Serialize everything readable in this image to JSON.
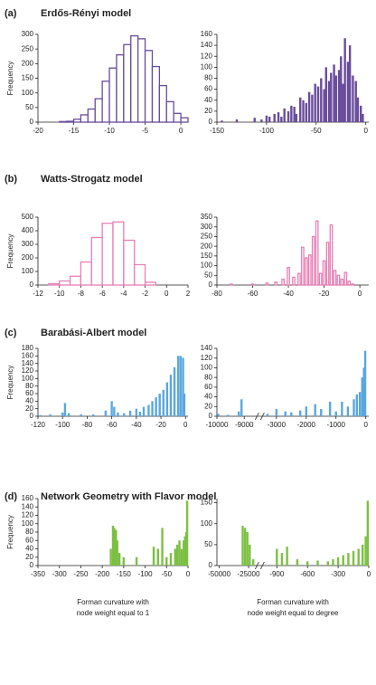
{
  "chart_data": [
    {
      "type": "histogram",
      "panel": "(a)",
      "title": "Erdős-Rényi model",
      "ylabel": "Frequency",
      "style": "outline",
      "color": "#6a4c9c",
      "bins": [
        -17,
        -16,
        -15,
        -14,
        -13,
        -12,
        -11,
        -10,
        -9,
        -8,
        -7,
        -6,
        -5,
        -4,
        -3,
        -2,
        -1,
        0,
        1
      ],
      "values": [
        2,
        3,
        10,
        25,
        45,
        80,
        140,
        185,
        230,
        265,
        295,
        285,
        245,
        190,
        125,
        70,
        30,
        15
      ],
      "xlim": [
        -20,
        1
      ],
      "xticks": [
        -20,
        -15,
        -10,
        -5,
        0
      ],
      "ylim": [
        0,
        300
      ],
      "yticks": [
        0,
        50,
        100,
        150,
        200,
        250,
        300
      ]
    },
    {
      "type": "bar",
      "style": "filled",
      "color": "#6a4c9c",
      "x": [
        -145,
        -130,
        -112,
        -105,
        -100,
        -97,
        -92,
        -88,
        -85,
        -82,
        -78,
        -75,
        -72,
        -70,
        -66,
        -63,
        -60,
        -57,
        -54,
        -51,
        -48,
        -45,
        -42,
        -40,
        -37,
        -35,
        -32,
        -30,
        -27,
        -25,
        -23,
        -21,
        -18,
        -16,
        -13,
        -10,
        -8,
        -5,
        -3
      ],
      "values": [
        3,
        5,
        8,
        5,
        12,
        10,
        15,
        18,
        10,
        25,
        20,
        30,
        28,
        15,
        45,
        40,
        35,
        55,
        50,
        70,
        65,
        80,
        60,
        100,
        75,
        90,
        105,
        85,
        95,
        120,
        70,
        153,
        110,
        140,
        85,
        75,
        45,
        30,
        15
      ],
      "xlim": [
        -150,
        3
      ],
      "xticks": [
        -150,
        -100,
        -50,
        0
      ],
      "ylim": [
        0,
        160
      ],
      "yticks": [
        0,
        20,
        40,
        60,
        80,
        100,
        120,
        140,
        160
      ]
    },
    {
      "type": "histogram",
      "panel": "(b)",
      "title": "Watts-Strogatz model",
      "ylabel": "Frequency",
      "style": "outline",
      "color": "#e77fb5",
      "bins": [
        -11,
        -10,
        -9,
        -8,
        -7,
        -6,
        -5,
        -4,
        -3,
        -2,
        -1
      ],
      "values": [
        10,
        30,
        65,
        170,
        350,
        455,
        465,
        330,
        150,
        20
      ],
      "xlim": [
        -12,
        2
      ],
      "xticks": [
        -12,
        -10,
        -8,
        -6,
        -4,
        -2,
        0,
        2
      ],
      "ylim": [
        0,
        500
      ],
      "yticks": [
        0,
        100,
        200,
        300,
        400,
        500
      ]
    },
    {
      "type": "bar",
      "style": "outline",
      "color": "#e77fb5",
      "x": [
        -72,
        -60,
        -52,
        -47,
        -43,
        -40,
        -37,
        -34,
        -32,
        -30,
        -28,
        -26,
        -24,
        -22,
        -20,
        -18,
        -16,
        -14,
        -12,
        -10,
        -8,
        -6,
        -4
      ],
      "values": [
        5,
        5,
        10,
        15,
        30,
        90,
        40,
        60,
        195,
        140,
        155,
        250,
        330,
        60,
        125,
        220,
        310,
        75,
        50,
        30,
        65,
        20,
        5
      ],
      "xlim": [
        -80,
        5
      ],
      "xticks": [
        -80,
        -60,
        -40,
        -20,
        0
      ],
      "ylim": [
        0,
        350
      ],
      "yticks": [
        0,
        50,
        100,
        150,
        200,
        250,
        300,
        350
      ]
    },
    {
      "type": "bar",
      "panel": "(c)",
      "title": "Barabási-Albert model",
      "ylabel": "Frequency",
      "style": "filled",
      "color": "#5aa7de",
      "x": [
        -118,
        -110,
        -100,
        -98,
        -95,
        -85,
        -75,
        -65,
        -60,
        -58,
        -55,
        -50,
        -45,
        -40,
        -37,
        -34,
        -30,
        -27,
        -24,
        -21,
        -18,
        -15,
        -12,
        -9,
        -6,
        -4,
        -2,
        -1
      ],
      "values": [
        3,
        5,
        10,
        35,
        8,
        5,
        5,
        15,
        40,
        25,
        10,
        8,
        15,
        20,
        12,
        25,
        30,
        40,
        50,
        60,
        70,
        90,
        110,
        130,
        160,
        160,
        155,
        60
      ],
      "xlim": [
        -120,
        2
      ],
      "xticks": [
        -120,
        -100,
        -80,
        -60,
        -40,
        -20,
        0
      ],
      "ylim": [
        0,
        180
      ],
      "yticks": [
        0,
        20,
        40,
        60,
        80,
        100,
        120,
        140,
        160,
        180
      ]
    },
    {
      "type": "bar",
      "style": "filled",
      "color": "#5aa7de",
      "xbreak": [
        -8500,
        -3500
      ],
      "x": [
        -9950,
        -9600,
        -9200,
        -9100,
        -3300,
        -3000,
        -2700,
        -2500,
        -2200,
        -2000,
        -1700,
        -1500,
        -1200,
        -1000,
        -800,
        -600,
        -400,
        -300,
        -200,
        -120,
        -60,
        -20
      ],
      "values": [
        5,
        3,
        10,
        35,
        5,
        15,
        10,
        8,
        12,
        20,
        25,
        15,
        30,
        10,
        30,
        20,
        35,
        45,
        50,
        80,
        100,
        135
      ],
      "xlim": [
        -10000,
        100
      ],
      "xticks": [
        -10000,
        -9000,
        -3000,
        -2000,
        -1000,
        0
      ],
      "ylim": [
        0,
        140
      ],
      "yticks": [
        0,
        20,
        40,
        60,
        80,
        100,
        120,
        140
      ]
    },
    {
      "type": "bar",
      "panel": "(d)",
      "title": "Network Geometry with Flavor model",
      "ylabel": "Frequency",
      "style": "filled",
      "color": "#7cc043",
      "xlabel": [
        "Forman curvature with",
        "node weight equal to 1"
      ],
      "x": [
        -180,
        -175,
        -172,
        -168,
        -165,
        -160,
        -150,
        -120,
        -80,
        -70,
        -60,
        -50,
        -40,
        -30,
        -25,
        -20,
        -15,
        -10,
        -7,
        -4,
        -2
      ],
      "values": [
        40,
        95,
        90,
        85,
        60,
        30,
        20,
        20,
        45,
        40,
        90,
        20,
        30,
        40,
        50,
        60,
        40,
        60,
        70,
        80,
        155
      ],
      "xlim": [
        -350,
        0
      ],
      "xticks": [
        -350,
        -300,
        -250,
        -200,
        -150,
        -100,
        -50,
        0
      ],
      "ylim": [
        0,
        160
      ],
      "yticks": [
        0,
        20,
        40,
        60,
        80,
        100,
        120,
        140,
        160
      ]
    },
    {
      "type": "bar",
      "style": "filled",
      "color": "#7cc043",
      "xbreak": [
        -17000,
        -1050
      ],
      "xlabel": [
        "Forman curvature with",
        "node weight equal to degree"
      ],
      "x": [
        -30000,
        -28000,
        -26000,
        -24000,
        -21000,
        -900,
        -850,
        -800,
        -700,
        -600,
        -500,
        -400,
        -350,
        -300,
        -250,
        -200,
        -150,
        -100,
        -60,
        -30,
        -10
      ],
      "values": [
        95,
        90,
        80,
        50,
        15,
        40,
        30,
        45,
        15,
        10,
        12,
        10,
        15,
        20,
        25,
        30,
        35,
        40,
        50,
        70,
        155
      ],
      "xlim": [
        -52000,
        0
      ],
      "xticks": [
        -50000,
        -25000,
        -900,
        -600,
        -300,
        0
      ],
      "ylim": [
        0,
        160
      ],
      "yticks": [
        0,
        50,
        100,
        150
      ]
    }
  ]
}
